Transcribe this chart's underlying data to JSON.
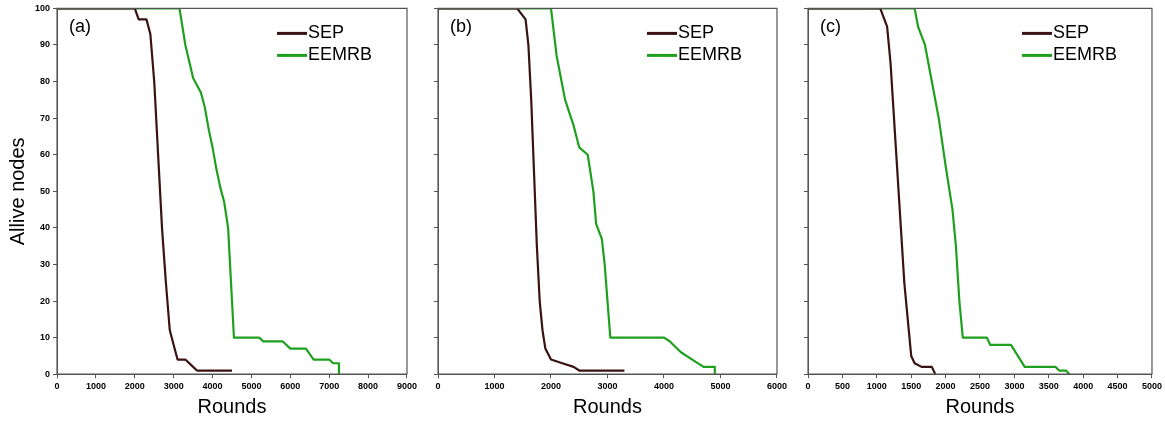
{
  "chart_data": [
    {
      "type": "line",
      "xlabel": "Rounds",
      "ylabel": "Allive nodes",
      "annotations": [
        "(a)"
      ],
      "legend": "top right",
      "grid": false,
      "marker": "none",
      "line_style": "solid",
      "xlim": [
        0,
        9000
      ],
      "xticks": [
        0,
        1000,
        2000,
        3000,
        4000,
        5000,
        6000,
        7000,
        8000,
        9000
      ],
      "ylim": [
        0,
        100
      ],
      "yticks": [
        0,
        10,
        20,
        30,
        40,
        50,
        60,
        70,
        80,
        90,
        100
      ],
      "series": [
        {
          "name": "SEP",
          "color": "#3a1212",
          "x": [
            0,
            2000,
            2100,
            2300,
            2400,
            2500,
            2600,
            2700,
            2800,
            2900,
            3000,
            3100,
            3300,
            3500,
            3600,
            4500
          ],
          "values": [
            100,
            100,
            97,
            97,
            93,
            80,
            60,
            40,
            25,
            12,
            8,
            4,
            4,
            2,
            1,
            1
          ]
        },
        {
          "name": "EEMRB",
          "color": "#1ea01e",
          "x": [
            0,
            3150,
            3300,
            3500,
            3700,
            3800,
            3900,
            4000,
            4100,
            4200,
            4300,
            4400,
            4500,
            4550,
            5200,
            5300,
            5800,
            6000,
            6400,
            6600,
            7000,
            7100,
            7250,
            7250
          ],
          "values": [
            100,
            100,
            90,
            81,
            77,
            73,
            67,
            62,
            56,
            51,
            47,
            40,
            20,
            10,
            10,
            9,
            9,
            7,
            7,
            4,
            4,
            3,
            3,
            0
          ]
        }
      ]
    },
    {
      "type": "line",
      "xlabel": "Rounds",
      "annotations": [
        "(b)"
      ],
      "legend": "top right",
      "grid": false,
      "marker": "none",
      "line_style": "solid",
      "tick_labels": "x",
      "xlim": [
        0,
        6000
      ],
      "xticks": [
        0,
        1000,
        2000,
        3000,
        4000,
        5000,
        6000
      ],
      "ylim": [
        0,
        100
      ],
      "yticks": [
        0,
        10,
        20,
        30,
        40,
        50,
        60,
        70,
        80,
        90,
        100
      ],
      "series": [
        {
          "name": "SEP",
          "color": "#3a1212",
          "x": [
            0,
            1400,
            1550,
            1600,
            1650,
            1700,
            1750,
            1800,
            1850,
            1900,
            2000,
            2200,
            2400,
            2500,
            3300
          ],
          "values": [
            100,
            100,
            97,
            90,
            75,
            55,
            35,
            20,
            12,
            7,
            4,
            3,
            2,
            1,
            1
          ]
        },
        {
          "name": "EEMRB",
          "color": "#1ea01e",
          "x": [
            0,
            2000,
            2100,
            2250,
            2400,
            2500,
            2650,
            2750,
            2800,
            2900,
            2950,
            3050,
            4000,
            4100,
            4300,
            4500,
            4700,
            4900,
            4900
          ],
          "values": [
            100,
            100,
            87,
            75,
            68,
            62,
            60,
            50,
            41,
            37,
            30,
            10,
            10,
            9,
            6,
            4,
            2,
            2,
            0
          ]
        }
      ]
    },
    {
      "type": "line",
      "xlabel": "Rounds",
      "annotations": [
        "(c)"
      ],
      "legend": "top right",
      "grid": false,
      "marker": "none",
      "line_style": "solid",
      "tick_labels": "x",
      "xlim": [
        0,
        5000
      ],
      "xticks": [
        0,
        500,
        1000,
        1500,
        2000,
        2500,
        3000,
        3500,
        4000,
        4500,
        5000
      ],
      "ylim": [
        0,
        100
      ],
      "yticks": [
        0,
        10,
        20,
        30,
        40,
        50,
        60,
        70,
        80,
        90,
        100
      ],
      "series": [
        {
          "name": "SEP",
          "color": "#3a1212",
          "x": [
            0,
            1050,
            1150,
            1200,
            1250,
            1300,
            1350,
            1400,
            1450,
            1500,
            1550,
            1650,
            1800,
            1850
          ],
          "values": [
            100,
            100,
            95,
            85,
            70,
            55,
            40,
            25,
            15,
            5,
            3,
            2,
            2,
            0
          ]
        },
        {
          "name": "EEMRB",
          "color": "#1ea01e",
          "x": [
            0,
            1550,
            1600,
            1700,
            1800,
            1900,
            2000,
            2100,
            2150,
            2200,
            2250,
            2600,
            2650,
            2950,
            3050,
            3150,
            3600,
            3650,
            3750,
            3800
          ],
          "values": [
            100,
            100,
            95,
            90,
            80,
            70,
            57,
            45,
            35,
            20,
            10,
            10,
            8,
            8,
            5,
            2,
            2,
            1,
            1,
            0
          ]
        }
      ]
    }
  ]
}
